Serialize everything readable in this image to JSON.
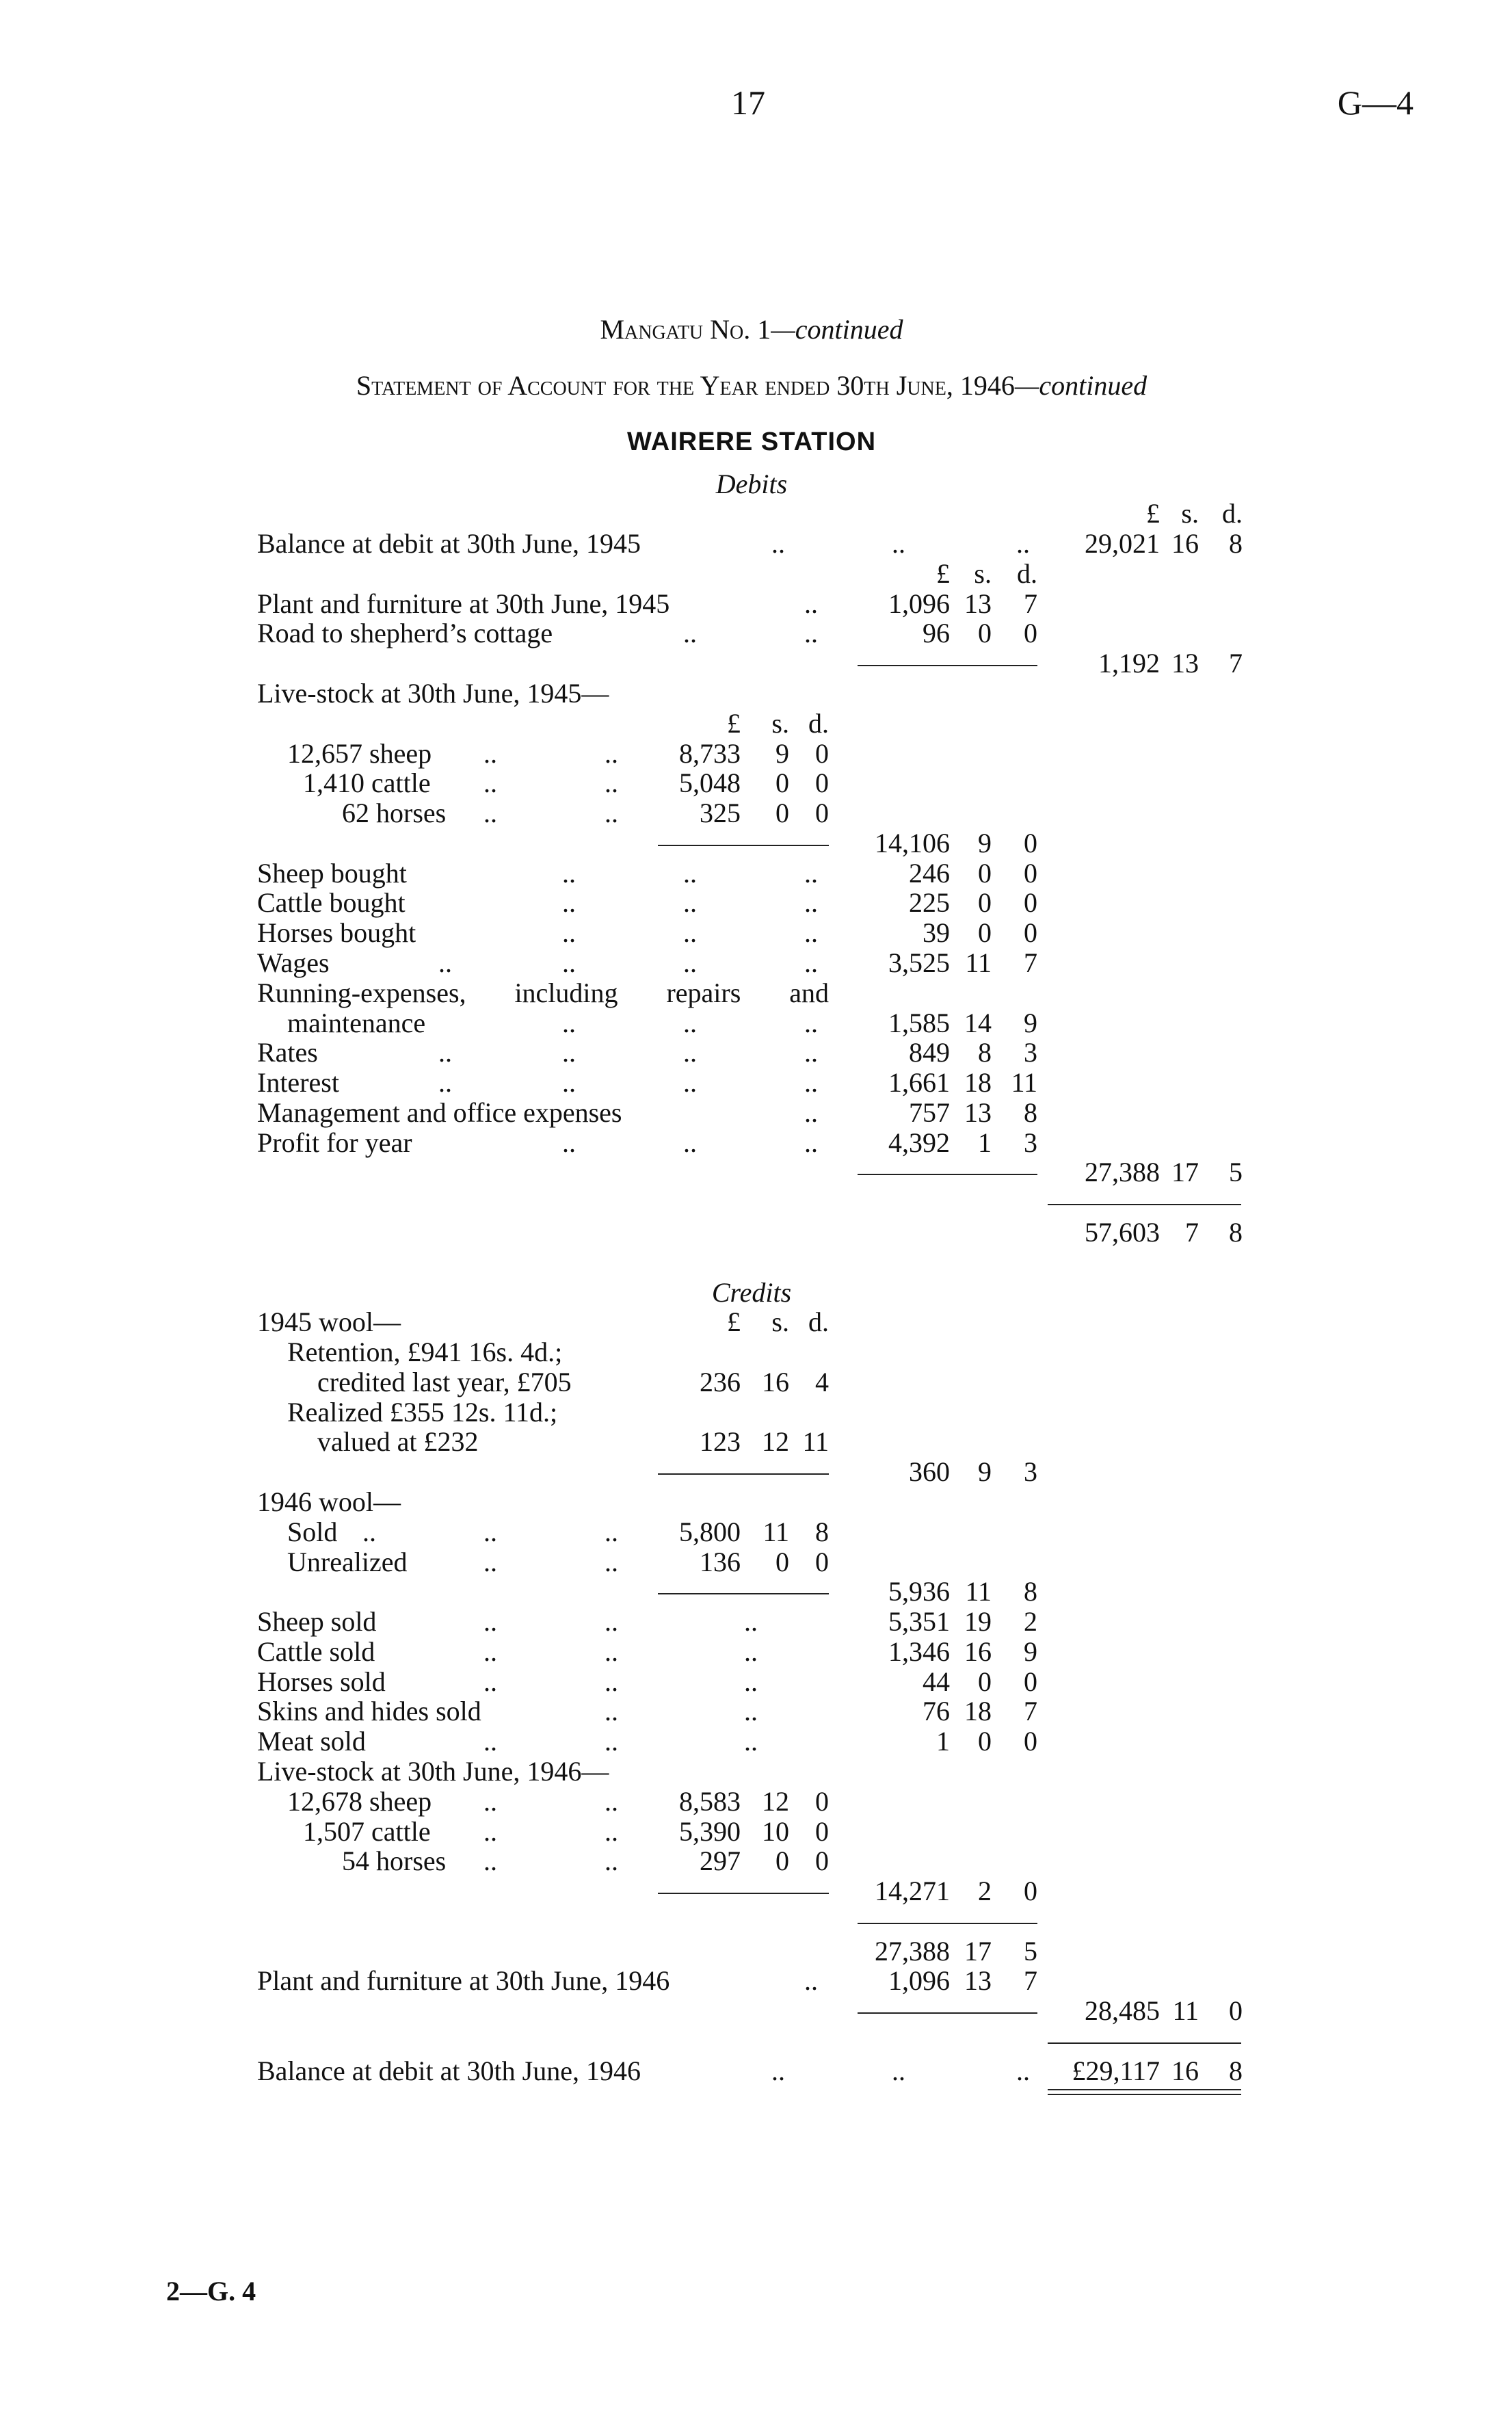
{
  "header": {
    "page_number": "17",
    "doc_code": "G—4"
  },
  "title": {
    "main": "Mangatu No. 1",
    "main_suffix": "—continued",
    "statement": "Statement of Account for the Year ended 30th June, 1946",
    "statement_suffix": "—continued",
    "station": "WAIRERE STATION"
  },
  "footer": {
    "code": "2—G. 4"
  },
  "currency_header": [
    "£",
    "s.",
    "d."
  ],
  "rows": [
    {
      "title": "Debits"
    },
    {
      "right_header": true
    },
    {
      "label": "Balance at debit at 30th June, 1945",
      "right": [
        "29,021",
        "16",
        "8"
      ]
    },
    {
      "mid_header": true
    },
    {
      "label": "Plant and furniture at 30th June, 1945",
      "mid": [
        "1,096",
        "13",
        "7"
      ]
    },
    {
      "label": "Road to shepherd’s cottage",
      "mid": [
        "96",
        "0",
        "0"
      ]
    },
    {
      "mid_rule": true,
      "right": [
        "1,192",
        "13",
        "7"
      ]
    },
    {
      "label": "Live-stock at 30th June, 1945—"
    },
    {
      "inner_header": true
    },
    {
      "label": "12,657 sheep",
      "inner": [
        "8,733",
        "9",
        "0"
      ]
    },
    {
      "label": "1,410 cattle",
      "inner": [
        "5,048",
        "0",
        "0"
      ]
    },
    {
      "label": "62 horses",
      "inner": [
        "325",
        "0",
        "0"
      ]
    },
    {
      "inner_rule": true,
      "mid": [
        "14,106",
        "9",
        "0"
      ]
    },
    {
      "label": "Sheep bought",
      "mid": [
        "246",
        "0",
        "0"
      ]
    },
    {
      "label": "Cattle bought",
      "mid": [
        "225",
        "0",
        "0"
      ]
    },
    {
      "label": "Horses bought",
      "mid": [
        "39",
        "0",
        "0"
      ]
    },
    {
      "label": "Wages",
      "mid": [
        "3,525",
        "11",
        "7"
      ]
    },
    {
      "label": "Running-expenses, including repairs and"
    },
    {
      "label": "maintenance",
      "mid": [
        "1,585",
        "14",
        "9"
      ]
    },
    {
      "label": "Rates",
      "mid": [
        "849",
        "8",
        "3"
      ]
    },
    {
      "label": "Interest",
      "mid": [
        "1,661",
        "18",
        "11"
      ]
    },
    {
      "label": "Management and office expenses",
      "mid": [
        "757",
        "13",
        "8"
      ]
    },
    {
      "label": "Profit for year",
      "mid": [
        "4,392",
        "1",
        "3"
      ]
    },
    {
      "mid_rule": true,
      "right": [
        "27,388",
        "17",
        "5"
      ]
    },
    {
      "right_rule": true
    },
    {
      "right": [
        "57,603",
        "7",
        "8"
      ]
    },
    {},
    {
      "title": "Credits"
    },
    {
      "label": "1945 wool—",
      "inner_header": true
    },
    {
      "label": "Retention, £941 16s. 4d.;"
    },
    {
      "label": "credited last year, £705",
      "inner": [
        "236",
        "16",
        "4"
      ]
    },
    {
      "label": "Realized £355 12s. 11d.;"
    },
    {
      "label": "valued at £232",
      "inner": [
        "123",
        "12",
        "11"
      ]
    },
    {
      "inner_rule": true,
      "mid": [
        "360",
        "9",
        "3"
      ]
    },
    {
      "label": "1946 wool—"
    },
    {
      "label": "Sold",
      "inner": [
        "5,800",
        "11",
        "8"
      ]
    },
    {
      "label": "Unrealized",
      "inner": [
        "136",
        "0",
        "0"
      ]
    },
    {
      "inner_rule": true,
      "mid": [
        "5,936",
        "11",
        "8"
      ]
    },
    {
      "label": "Sheep sold",
      "mid": [
        "5,351",
        "19",
        "2"
      ]
    },
    {
      "label": "Cattle sold",
      "mid": [
        "1,346",
        "16",
        "9"
      ]
    },
    {
      "label": "Horses sold",
      "mid": [
        "44",
        "0",
        "0"
      ]
    },
    {
      "label": "Skins and hides sold",
      "mid": [
        "76",
        "18",
        "7"
      ]
    },
    {
      "label": "Meat sold",
      "mid": [
        "1",
        "0",
        "0"
      ]
    },
    {
      "label": "Live-stock at 30th June, 1946—"
    },
    {
      "label": "12,678 sheep",
      "inner": [
        "8,583",
        "12",
        "0"
      ]
    },
    {
      "label": "1,507 cattle",
      "inner": [
        "5,390",
        "10",
        "0"
      ]
    },
    {
      "label": "54 horses",
      "inner": [
        "297",
        "0",
        "0"
      ]
    },
    {
      "inner_rule": true,
      "mid": [
        "14,271",
        "2",
        "0"
      ]
    },
    {
      "mid_rule": true
    },
    {
      "mid": [
        "27,388",
        "17",
        "5"
      ]
    },
    {
      "label": "Plant and furniture at 30th June, 1946",
      "mid": [
        "1,096",
        "13",
        "7"
      ]
    },
    {
      "mid_rule": true,
      "right": [
        "28,485",
        "11",
        "0"
      ]
    },
    {
      "right_rule": true
    },
    {
      "label": "Balance at debit at 30th June, 1946",
      "right": [
        "£29,117",
        "16",
        "8"
      ],
      "double_rule_below": true
    }
  ]
}
